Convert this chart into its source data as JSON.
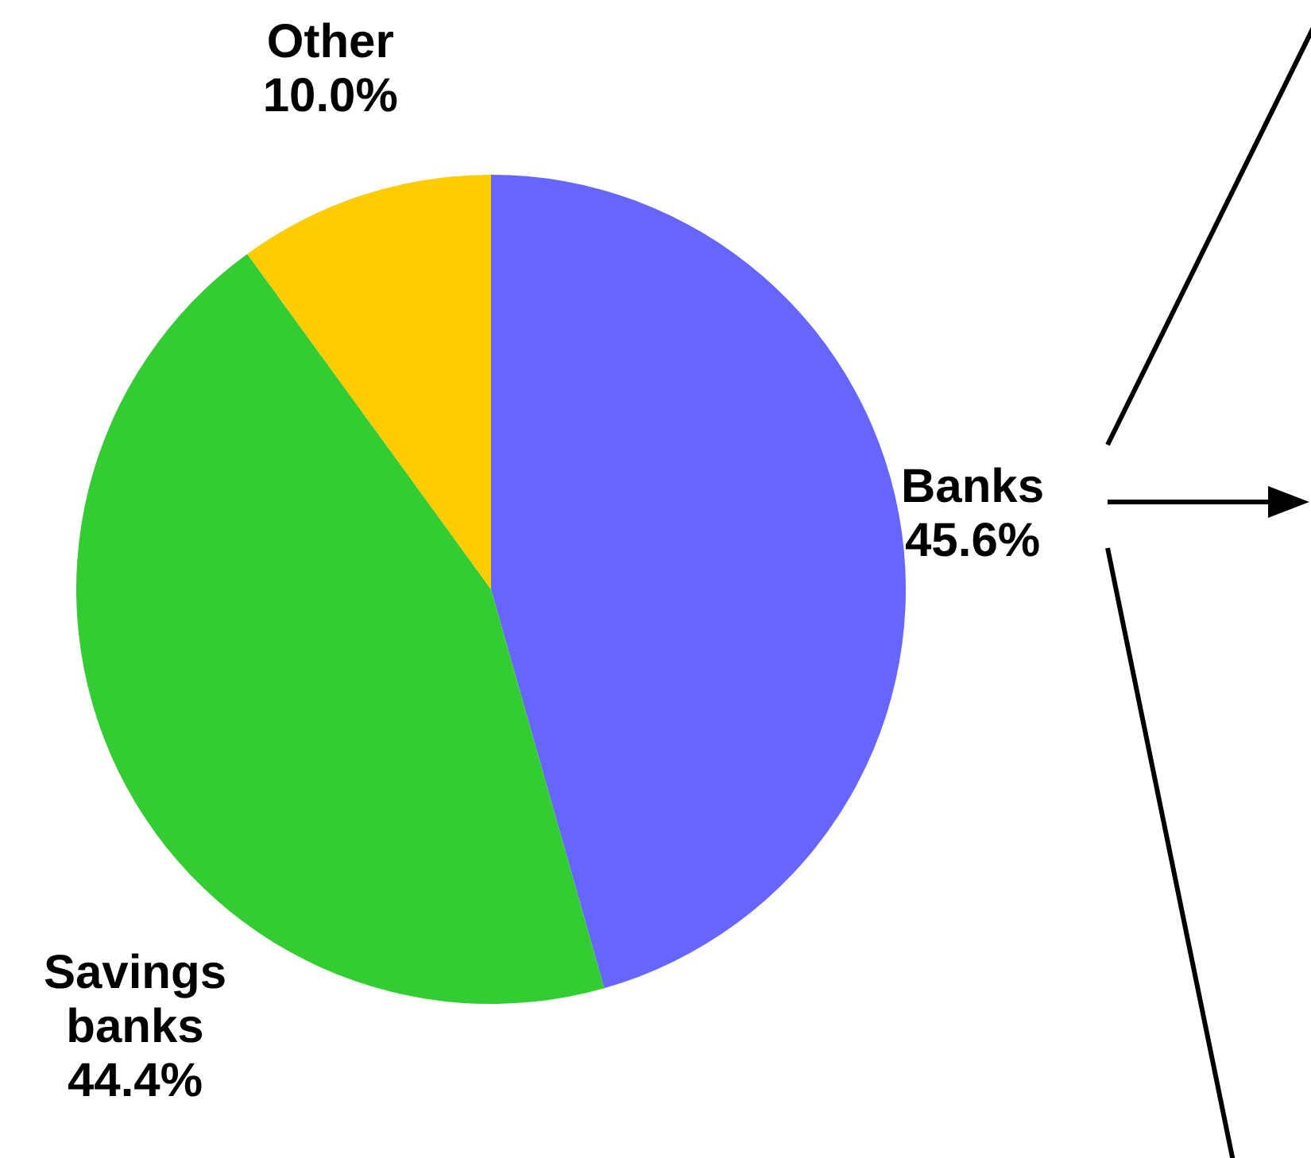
{
  "chart_data": {
    "type": "pie",
    "categories": [
      "Banks",
      "Savings banks",
      "Other"
    ],
    "values": [
      45.6,
      44.4,
      10.0
    ],
    "value_labels": [
      "45.6%",
      "44.4%",
      "10.0%"
    ],
    "colors": [
      "#6666ff",
      "#33cc33",
      "#ffcc00"
    ],
    "legend": false
  }
}
